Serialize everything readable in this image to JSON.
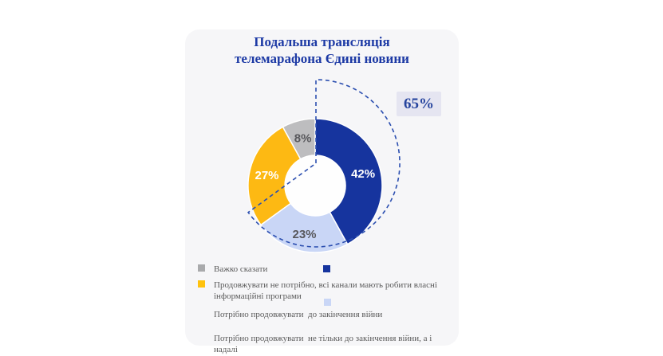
{
  "card": {
    "title_line1": "Подальша трансляція",
    "title_line2": "телемарафона Єдині новини"
  },
  "colors": {
    "card_bg": "#F6F6F8",
    "title": "#1D3AA5",
    "dash": "#2C4FB0",
    "highlight_bg": "#E5E5F1",
    "highlight_text": "#26449E",
    "legend_text": "#5A5A5A"
  },
  "chart_data": {
    "type": "pie",
    "donut": true,
    "title": "Подальша трансляція телемарафона Єдині новини",
    "legend_position": "bottom-left",
    "slices": [
      {
        "name": "Потрібно продовжувати не тільки до закінчення війни, а і надалі",
        "value": 42,
        "label": "42%",
        "color": "#16349E",
        "label_color": "#FFFFFF"
      },
      {
        "name": "Потрібно продовжувати до закінчення війни",
        "value": 23,
        "label": "23%",
        "color": "#C9D6F6",
        "label_color": "#58585C"
      },
      {
        "name": "Продовжувати не потрібно, всі канали мають робити власні інформаційні програми",
        "value": 27,
        "label": "27%",
        "color": "#FDB913",
        "label_color": "#FFFFFF"
      },
      {
        "name": "Важко сказати",
        "value": 8,
        "label": "8%",
        "color": "#BDBDBF",
        "label_color": "#58585C"
      }
    ],
    "highlight": {
      "value": 65,
      "label": "65%"
    }
  },
  "legend": {
    "items": [
      {
        "label": "Важко сказати",
        "marker_color": "#A9AAAC"
      },
      {
        "label": "Продовжувати не потрібно, всі канали мають робити власні інформаційні програми",
        "marker_color": "#FFC20E"
      },
      {
        "label": "Потрібно продовжувати  до закінчення війни",
        "marker_color": null
      },
      {
        "label": "Потрібно продовжувати  не тільки до закінчення війни, а і надалі",
        "marker_color": null
      }
    ],
    "floating_markers": [
      {
        "name": "dark-blue",
        "color": "#16349E"
      },
      {
        "name": "light-blue",
        "color": "#C9D6F6"
      }
    ]
  }
}
